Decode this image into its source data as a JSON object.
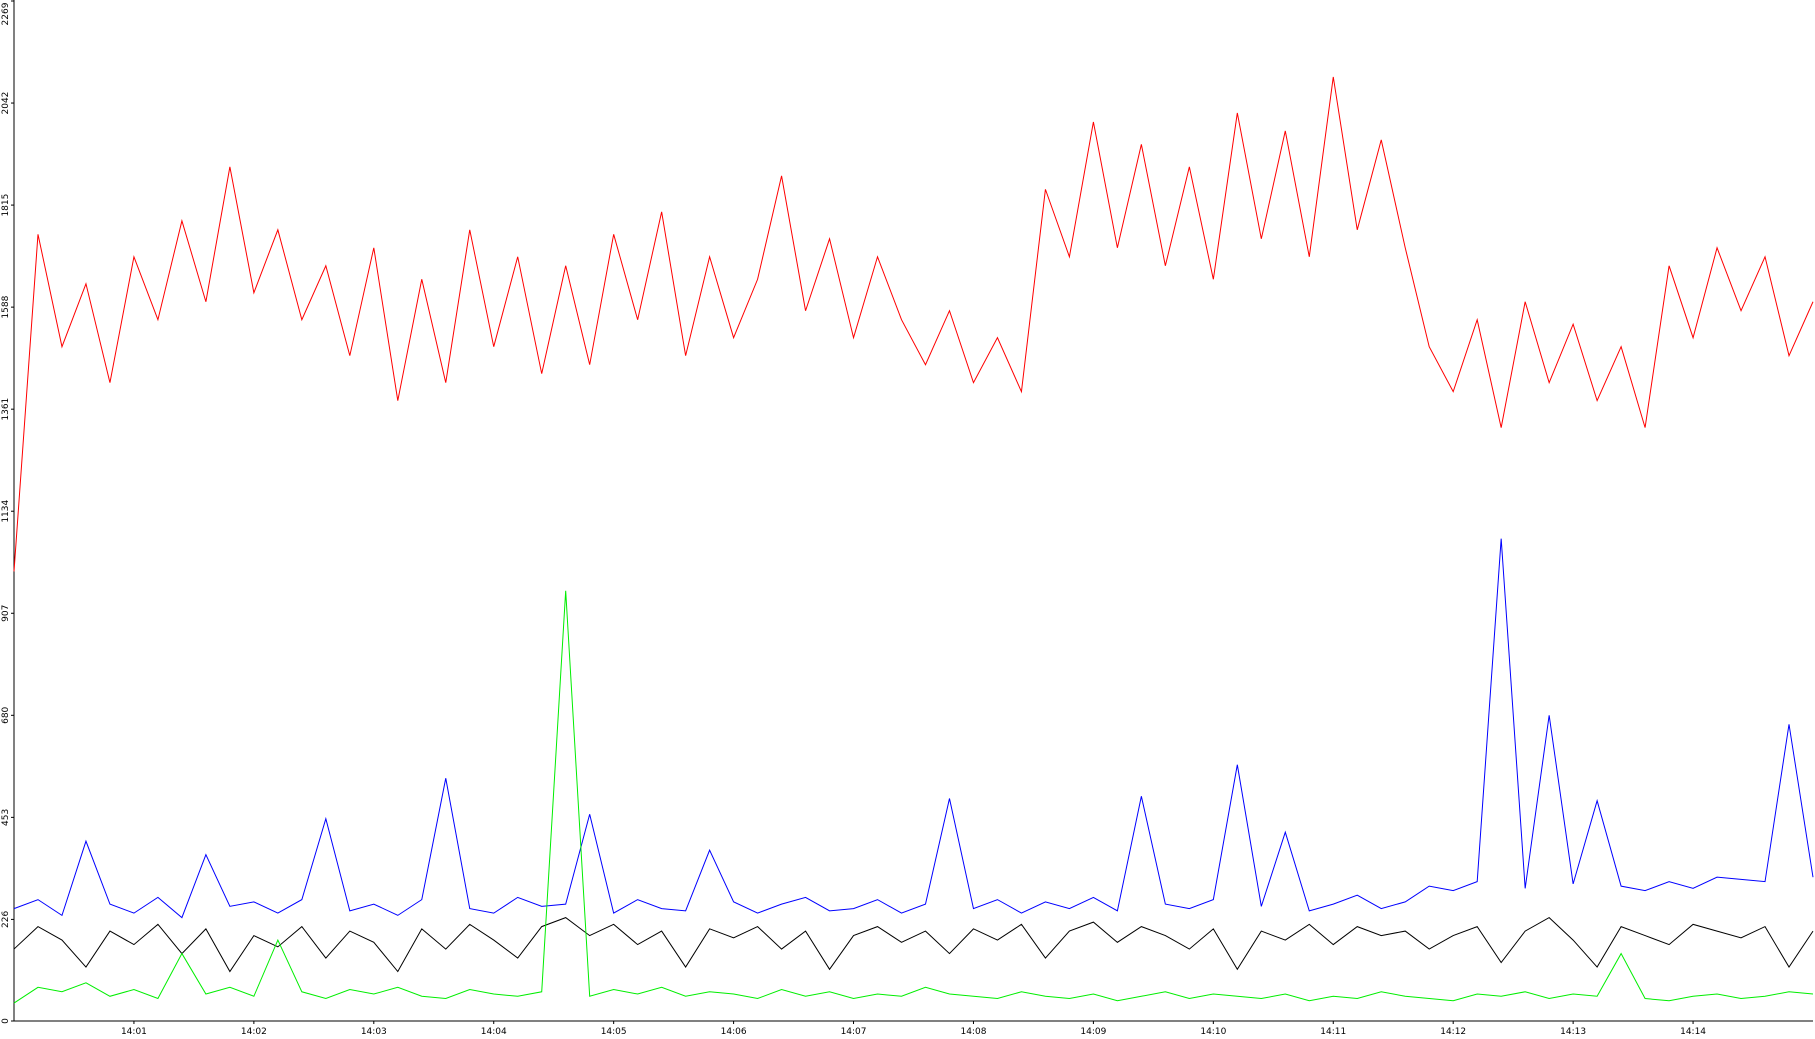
{
  "chart_data": {
    "type": "line",
    "x": [
      0,
      0.2,
      0.4,
      0.6,
      0.8,
      1,
      1.2,
      1.4,
      1.6,
      1.8,
      2,
      2.2,
      2.4,
      2.6,
      2.8,
      3,
      3.2,
      3.4,
      3.6,
      3.8,
      4,
      4.2,
      4.4,
      4.6,
      4.8,
      5,
      5.2,
      5.4,
      5.6,
      5.8,
      6,
      6.2,
      6.4,
      6.6,
      6.8,
      7,
      7.2,
      7.4,
      7.6,
      7.8,
      8,
      8.2,
      8.4,
      8.6,
      8.8,
      9,
      9.2,
      9.4,
      9.6,
      9.8,
      10,
      10.2,
      10.4,
      10.6,
      10.8,
      11,
      11.2,
      11.4,
      11.6,
      11.8,
      12,
      12.2,
      12.4,
      12.6,
      12.8,
      13,
      13.2,
      13.4,
      13.6,
      13.8,
      14,
      14.2,
      14.4,
      14.6,
      14.8,
      15
    ],
    "xlim": [
      0,
      15
    ],
    "xticks": [
      {
        "value": 1,
        "label": "14:01"
      },
      {
        "value": 2,
        "label": "14:02"
      },
      {
        "value": 3,
        "label": "14:03"
      },
      {
        "value": 4,
        "label": "14:04"
      },
      {
        "value": 5,
        "label": "14:05"
      },
      {
        "value": 6,
        "label": "14:06"
      },
      {
        "value": 7,
        "label": "14:07"
      },
      {
        "value": 8,
        "label": "14:08"
      },
      {
        "value": 9,
        "label": "14:09"
      },
      {
        "value": 10,
        "label": "14:10"
      },
      {
        "value": 11,
        "label": "14:11"
      },
      {
        "value": 12,
        "label": "14:12"
      },
      {
        "value": 13,
        "label": "14:13"
      },
      {
        "value": 14,
        "label": "14:14"
      }
    ],
    "ylim": [
      0,
      2269
    ],
    "yticks": [
      0,
      226,
      453,
      680,
      907,
      1134,
      1361,
      1588,
      1815,
      2042,
      2269
    ],
    "series": [
      {
        "color": "#ff0000",
        "values": [
          1000,
          1750,
          1500,
          1640,
          1420,
          1700,
          1560,
          1780,
          1600,
          1900,
          1620,
          1760,
          1560,
          1680,
          1480,
          1720,
          1380,
          1650,
          1420,
          1760,
          1500,
          1700,
          1440,
          1680,
          1460,
          1750,
          1560,
          1800,
          1480,
          1700,
          1520,
          1650,
          1880,
          1580,
          1740,
          1520,
          1700,
          1560,
          1460,
          1580,
          1420,
          1520,
          1400,
          1850,
          1700,
          2000,
          1720,
          1950,
          1680,
          1900,
          1650,
          2020,
          1740,
          1980,
          1700,
          2100,
          1760,
          1960,
          1720,
          1500,
          1400,
          1560,
          1320,
          1600,
          1420,
          1550,
          1380,
          1500,
          1320,
          1680,
          1520,
          1720,
          1580,
          1700,
          1480,
          1600
        ]
      },
      {
        "color": "#0000ff",
        "values": [
          250,
          270,
          235,
          400,
          260,
          240,
          275,
          230,
          370,
          255,
          265,
          240,
          270,
          450,
          245,
          260,
          235,
          270,
          540,
          250,
          240,
          275,
          255,
          260,
          460,
          240,
          270,
          250,
          245,
          380,
          265,
          240,
          260,
          275,
          245,
          250,
          270,
          240,
          260,
          495,
          250,
          270,
          240,
          265,
          250,
          275,
          245,
          500,
          260,
          250,
          270,
          570,
          255,
          420,
          245,
          260,
          280,
          250,
          265,
          300,
          290,
          310,
          1073,
          295,
          680,
          305,
          490,
          300,
          290,
          310,
          295,
          320,
          315,
          310,
          660,
          320
        ]
      },
      {
        "color": "#000000",
        "values": [
          160,
          210,
          180,
          120,
          200,
          170,
          215,
          150,
          205,
          110,
          190,
          165,
          210,
          140,
          200,
          175,
          110,
          205,
          160,
          215,
          180,
          140,
          210,
          230,
          190,
          215,
          170,
          200,
          120,
          205,
          185,
          210,
          160,
          200,
          115,
          190,
          210,
          175,
          200,
          150,
          205,
          180,
          215,
          140,
          200,
          220,
          175,
          210,
          190,
          160,
          205,
          115,
          200,
          180,
          215,
          170,
          210,
          190,
          200,
          160,
          190,
          210,
          130,
          200,
          230,
          180,
          120,
          210,
          190,
          170,
          215,
          200,
          185,
          210,
          120,
          200
        ]
      },
      {
        "color": "#00ee00",
        "values": [
          40,
          75,
          65,
          85,
          55,
          70,
          50,
          150,
          60,
          75,
          55,
          180,
          65,
          50,
          70,
          60,
          75,
          55,
          50,
          70,
          60,
          55,
          65,
          957,
          55,
          70,
          60,
          75,
          55,
          65,
          60,
          50,
          70,
          55,
          65,
          50,
          60,
          55,
          75,
          60,
          55,
          50,
          65,
          55,
          50,
          60,
          45,
          55,
          65,
          50,
          60,
          55,
          50,
          60,
          45,
          55,
          50,
          65,
          55,
          50,
          45,
          60,
          55,
          65,
          50,
          60,
          55,
          150,
          50,
          45,
          55,
          60,
          50,
          55,
          65,
          60
        ]
      }
    ]
  }
}
